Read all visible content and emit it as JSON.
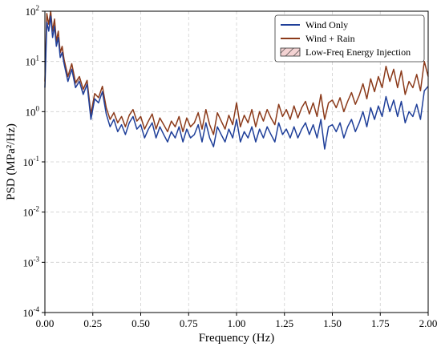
{
  "chart_data": {
    "type": "line",
    "title": "",
    "xlabel": "Frequency (Hz)",
    "ylabel": "PSD (MPa²/Hz)",
    "xlim": [
      0,
      2.0
    ],
    "ylim": [
      0.0001,
      100
    ],
    "yscale": "log",
    "grid": true,
    "legend_position": "top-right",
    "x_ticks": [
      "0.00",
      "0.25",
      "0.50",
      "0.75",
      "1.00",
      "1.25",
      "1.50",
      "1.75",
      "2.00"
    ],
    "y_ticks": [
      {
        "base": "10",
        "exp": "-4"
      },
      {
        "base": "10",
        "exp": "-3"
      },
      {
        "base": "10",
        "exp": "-2"
      },
      {
        "base": "10",
        "exp": "-1"
      },
      {
        "base": "10",
        "exp": "0"
      },
      {
        "base": "10",
        "exp": "1"
      },
      {
        "base": "10",
        "exp": "2"
      }
    ],
    "shaded_region": {
      "name": "Low-Freq Energy Injection",
      "x_range": [
        0.0,
        0.25
      ]
    },
    "series": [
      {
        "name": "Wind Only",
        "color": "#1f3f99",
        "x": [
          0.0,
          0.01,
          0.02,
          0.03,
          0.04,
          0.05,
          0.06,
          0.07,
          0.08,
          0.09,
          0.1,
          0.12,
          0.14,
          0.16,
          0.18,
          0.2,
          0.22,
          0.24,
          0.26,
          0.28,
          0.3,
          0.32,
          0.34,
          0.36,
          0.38,
          0.4,
          0.42,
          0.44,
          0.46,
          0.48,
          0.5,
          0.52,
          0.54,
          0.56,
          0.58,
          0.6,
          0.62,
          0.64,
          0.66,
          0.68,
          0.7,
          0.72,
          0.74,
          0.76,
          0.78,
          0.8,
          0.82,
          0.84,
          0.86,
          0.88,
          0.9,
          0.92,
          0.94,
          0.96,
          0.98,
          1.0,
          1.02,
          1.04,
          1.06,
          1.08,
          1.1,
          1.12,
          1.14,
          1.16,
          1.18,
          1.2,
          1.22,
          1.24,
          1.26,
          1.28,
          1.3,
          1.32,
          1.34,
          1.36,
          1.38,
          1.4,
          1.42,
          1.44,
          1.46,
          1.48,
          1.5,
          1.52,
          1.54,
          1.56,
          1.58,
          1.6,
          1.62,
          1.64,
          1.66,
          1.68,
          1.7,
          1.72,
          1.74,
          1.76,
          1.78,
          1.8,
          1.82,
          1.84,
          1.86,
          1.88,
          1.9,
          1.92,
          1.94,
          1.96,
          1.98,
          2.0
        ],
        "values": [
          3.0,
          60,
          40,
          80,
          30,
          50,
          20,
          30,
          12,
          15,
          9,
          4.0,
          7,
          3.0,
          4.0,
          2.2,
          3.5,
          0.7,
          1.8,
          1.5,
          2.5,
          0.9,
          0.5,
          0.7,
          0.4,
          0.55,
          0.35,
          0.6,
          0.8,
          0.45,
          0.55,
          0.3,
          0.45,
          0.6,
          0.3,
          0.5,
          0.35,
          0.25,
          0.4,
          0.3,
          0.5,
          0.25,
          0.45,
          0.3,
          0.35,
          0.55,
          0.25,
          0.6,
          0.3,
          0.2,
          0.5,
          0.35,
          0.25,
          0.45,
          0.3,
          0.7,
          0.25,
          0.4,
          0.3,
          0.5,
          0.25,
          0.45,
          0.3,
          0.5,
          0.35,
          0.25,
          0.6,
          0.35,
          0.45,
          0.3,
          0.5,
          0.3,
          0.45,
          0.6,
          0.35,
          0.55,
          0.3,
          0.7,
          0.18,
          0.5,
          0.55,
          0.4,
          0.6,
          0.3,
          0.5,
          0.7,
          0.4,
          0.6,
          1.0,
          0.5,
          1.2,
          0.7,
          1.3,
          0.8,
          2.0,
          1.0,
          1.7,
          0.8,
          1.6,
          0.6,
          1.0,
          0.8,
          1.4,
          0.7,
          2.6,
          3.2
        ]
      },
      {
        "name": "Wind + Rain",
        "color": "#8b3a1a",
        "x": [
          0.0,
          0.01,
          0.02,
          0.03,
          0.04,
          0.05,
          0.06,
          0.07,
          0.08,
          0.09,
          0.1,
          0.12,
          0.14,
          0.16,
          0.18,
          0.2,
          0.22,
          0.24,
          0.26,
          0.28,
          0.3,
          0.32,
          0.34,
          0.36,
          0.38,
          0.4,
          0.42,
          0.44,
          0.46,
          0.48,
          0.5,
          0.52,
          0.54,
          0.56,
          0.58,
          0.6,
          0.62,
          0.64,
          0.66,
          0.68,
          0.7,
          0.72,
          0.74,
          0.76,
          0.78,
          0.8,
          0.82,
          0.84,
          0.86,
          0.88,
          0.9,
          0.92,
          0.94,
          0.96,
          0.98,
          1.0,
          1.02,
          1.04,
          1.06,
          1.08,
          1.1,
          1.12,
          1.14,
          1.16,
          1.18,
          1.2,
          1.22,
          1.24,
          1.26,
          1.28,
          1.3,
          1.32,
          1.34,
          1.36,
          1.38,
          1.4,
          1.42,
          1.44,
          1.46,
          1.48,
          1.5,
          1.52,
          1.54,
          1.56,
          1.58,
          1.6,
          1.62,
          1.64,
          1.66,
          1.68,
          1.7,
          1.72,
          1.74,
          1.76,
          1.78,
          1.8,
          1.82,
          1.84,
          1.86,
          1.88,
          1.9,
          1.92,
          1.94,
          1.96,
          1.98,
          2.0
        ],
        "values": [
          4.0,
          90,
          55,
          100,
          40,
          70,
          25,
          40,
          15,
          20,
          11,
          5.0,
          9,
          3.8,
          5.0,
          2.8,
          4.2,
          0.9,
          2.3,
          1.9,
          3.2,
          1.2,
          0.7,
          0.95,
          0.6,
          0.8,
          0.5,
          0.85,
          1.1,
          0.65,
          0.8,
          0.45,
          0.65,
          0.9,
          0.45,
          0.75,
          0.55,
          0.4,
          0.65,
          0.5,
          0.8,
          0.4,
          0.75,
          0.5,
          0.6,
          0.95,
          0.45,
          1.1,
          0.55,
          0.35,
          0.95,
          0.65,
          0.45,
          0.85,
          0.55,
          1.5,
          0.5,
          0.85,
          0.6,
          1.1,
          0.5,
          1.0,
          0.65,
          1.1,
          0.75,
          0.55,
          1.4,
          0.8,
          1.1,
          0.7,
          1.3,
          0.75,
          1.2,
          1.6,
          0.9,
          1.5,
          0.8,
          2.2,
          0.7,
          1.5,
          1.7,
          1.2,
          1.9,
          1.0,
          1.6,
          2.4,
          1.4,
          2.1,
          3.6,
          1.8,
          4.5,
          2.5,
          5.0,
          3.0,
          8.0,
          4.0,
          7.0,
          3.0,
          6.5,
          2.2,
          4.0,
          3.0,
          5.5,
          2.6,
          10,
          5.0
        ]
      }
    ]
  }
}
